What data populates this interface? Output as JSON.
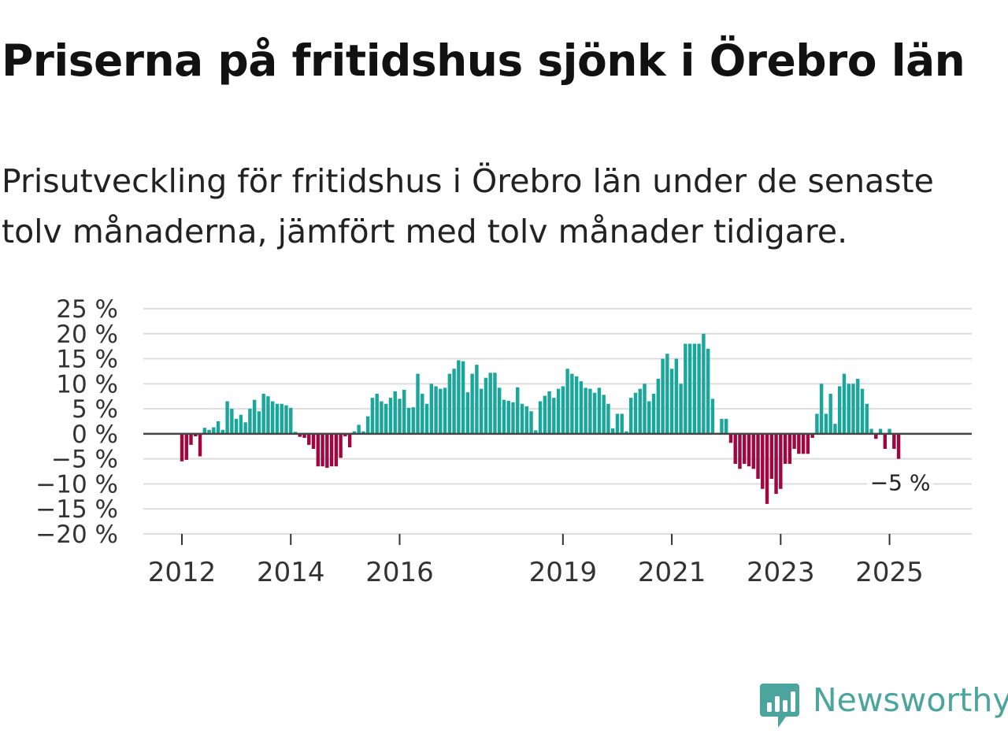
{
  "title": "Priserna på fritidshus sjönk i Örebro län",
  "subtitle": "Prisutveckling för fritidshus i Örebro län under de senaste tolv månaderna, jämfört med tolv månader tidigare.",
  "logo": {
    "text": "Newsworthy",
    "icon": "newsworthy-chart-icon"
  },
  "colors": {
    "positive": "#18a79a",
    "negative": "#a0063f",
    "zero_line": "#444444",
    "grid": "#dddddd",
    "brand": "#4ba59c"
  },
  "chart_data": {
    "type": "bar",
    "title": "",
    "xlabel": "",
    "ylabel": "",
    "ylim": [
      -20,
      25
    ],
    "y_ticks": [
      {
        "value": 25,
        "label": "25 %"
      },
      {
        "value": 20,
        "label": "20 %"
      },
      {
        "value": 15,
        "label": "15 %"
      },
      {
        "value": 10,
        "label": "10 %"
      },
      {
        "value": 5,
        "label": "5 %"
      },
      {
        "value": 0,
        "label": "0 %"
      },
      {
        "value": -5,
        "label": "−5 %"
      },
      {
        "value": -10,
        "label": "−10 %"
      },
      {
        "value": -15,
        "label": "−15 %"
      },
      {
        "value": -20,
        "label": "−20 %"
      }
    ],
    "x_ticks": [
      {
        "index": 0,
        "label": "2012"
      },
      {
        "index": 24,
        "label": "2014"
      },
      {
        "index": 48,
        "label": "2016"
      },
      {
        "index": 84,
        "label": "2019"
      },
      {
        "index": 108,
        "label": "2021"
      },
      {
        "index": 132,
        "label": "2023"
      },
      {
        "index": 156,
        "label": "2025"
      }
    ],
    "start": "2012-01",
    "frequency": "monthly",
    "values": [
      -5.5,
      -5.2,
      -2.2,
      -0.5,
      -4.5,
      1.2,
      0.8,
      1.3,
      2.5,
      0.8,
      6.5,
      5.0,
      3.0,
      3.8,
      2.3,
      5.0,
      6.8,
      4.5,
      8.0,
      7.5,
      6.5,
      6.0,
      6.0,
      5.7,
      5.2,
      0.4,
      -0.6,
      -0.8,
      -2.2,
      -3.0,
      -6.5,
      -6.5,
      -6.8,
      -6.5,
      -6.5,
      -4.8,
      -0.5,
      -2.7,
      0.5,
      1.8,
      0.5,
      3.5,
      7.2,
      8.0,
      6.5,
      6.0,
      7.2,
      8.5,
      7.0,
      8.8,
      5.2,
      5.3,
      12.0,
      8.0,
      6.0,
      10.0,
      9.5,
      9.0,
      9.2,
      12.0,
      13.0,
      14.7,
      14.5,
      8.3,
      12.0,
      13.8,
      9.0,
      11.2,
      12.2,
      12.2,
      9.2,
      6.8,
      6.6,
      6.3,
      9.3,
      6.0,
      5.5,
      4.5,
      0.7,
      6.5,
      7.6,
      8.5,
      7.2,
      9.0,
      9.5,
      13.0,
      12.0,
      11.5,
      10.5,
      9.2,
      9.0,
      8.2,
      9.2,
      7.8,
      6.0,
      1.1,
      4.0,
      4.0,
      0.5,
      7.2,
      8.2,
      9.0,
      10.0,
      6.5,
      8.0,
      11.0,
      15.0,
      16.0,
      13.0,
      15.0,
      10.0,
      18.0,
      18.0,
      18.0,
      18.0,
      20.0,
      17.0,
      7.0,
      0.2,
      3.0,
      3.0,
      -1.8,
      -6.0,
      -7.0,
      -6.0,
      -6.5,
      -7.0,
      -9.0,
      -11.0,
      -14.0,
      -9.0,
      -12.0,
      -11.0,
      -6.0,
      -6.0,
      -3.0,
      -4.0,
      -4.0,
      -4.0,
      -0.8,
      4.0,
      10.0,
      4.0,
      8.0,
      2.0,
      9.5,
      12.0,
      10.0,
      10.0,
      11.0,
      9.0,
      6.0,
      1.0,
      -1.0,
      1.0,
      -3.0,
      1.0,
      -3.0,
      -5.0
    ],
    "end_label": "−5 %"
  }
}
